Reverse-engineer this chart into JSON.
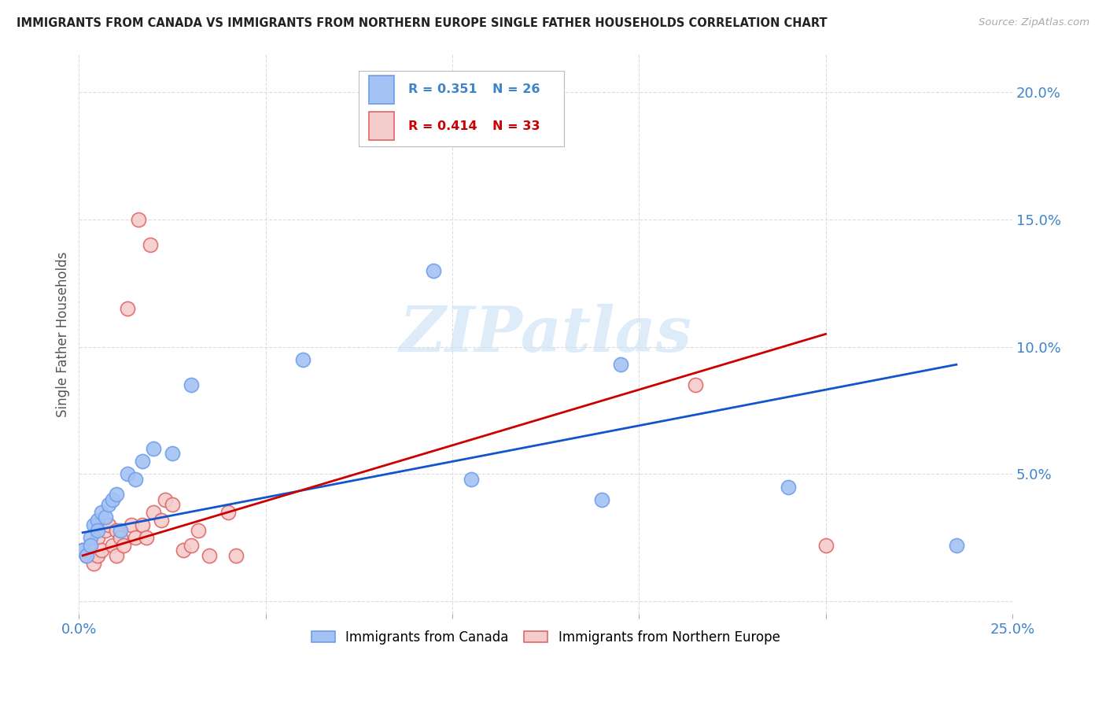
{
  "title": "IMMIGRANTS FROM CANADA VS IMMIGRANTS FROM NORTHERN EUROPE SINGLE FATHER HOUSEHOLDS CORRELATION CHART",
  "source": "Source: ZipAtlas.com",
  "ylabel": "Single Father Households",
  "xlim": [
    0.0,
    0.25
  ],
  "ylim": [
    -0.005,
    0.215
  ],
  "canada_R": "R = 0.351",
  "canada_N": "N = 26",
  "northern_R": "R = 0.414",
  "northern_N": "N = 33",
  "canada_color": "#a4c2f4",
  "northern_color": "#f4cccc",
  "canada_edge_color": "#6d9eeb",
  "northern_edge_color": "#e06666",
  "canada_line_color": "#1155cc",
  "northern_line_color": "#cc0000",
  "watermark_color": "#d0e4f7",
  "watermark": "ZIPatlas",
  "canada_x": [
    0.001,
    0.002,
    0.003,
    0.003,
    0.004,
    0.005,
    0.005,
    0.006,
    0.007,
    0.008,
    0.009,
    0.01,
    0.011,
    0.013,
    0.015,
    0.017,
    0.02,
    0.025,
    0.03,
    0.06,
    0.095,
    0.105,
    0.14,
    0.145,
    0.19,
    0.235
  ],
  "canada_y": [
    0.02,
    0.018,
    0.025,
    0.022,
    0.03,
    0.032,
    0.028,
    0.035,
    0.033,
    0.038,
    0.04,
    0.042,
    0.028,
    0.05,
    0.048,
    0.055,
    0.06,
    0.058,
    0.085,
    0.095,
    0.13,
    0.048,
    0.04,
    0.093,
    0.045,
    0.022
  ],
  "northern_x": [
    0.001,
    0.002,
    0.003,
    0.004,
    0.005,
    0.005,
    0.006,
    0.007,
    0.008,
    0.009,
    0.01,
    0.01,
    0.011,
    0.012,
    0.013,
    0.014,
    0.015,
    0.016,
    0.017,
    0.018,
    0.019,
    0.02,
    0.022,
    0.023,
    0.025,
    0.028,
    0.03,
    0.032,
    0.035,
    0.04,
    0.042,
    0.165,
    0.2
  ],
  "northern_y": [
    0.02,
    0.018,
    0.022,
    0.015,
    0.025,
    0.018,
    0.02,
    0.028,
    0.03,
    0.022,
    0.028,
    0.018,
    0.025,
    0.022,
    0.115,
    0.03,
    0.025,
    0.15,
    0.03,
    0.025,
    0.14,
    0.035,
    0.032,
    0.04,
    0.038,
    0.02,
    0.022,
    0.028,
    0.018,
    0.035,
    0.018,
    0.085,
    0.022
  ],
  "canada_line_x": [
    0.001,
    0.235
  ],
  "canada_line_y_start": 0.027,
  "canada_line_y_end": 0.093,
  "northern_line_x": [
    0.001,
    0.2
  ],
  "northern_line_y_start": 0.018,
  "northern_line_y_end": 0.105
}
